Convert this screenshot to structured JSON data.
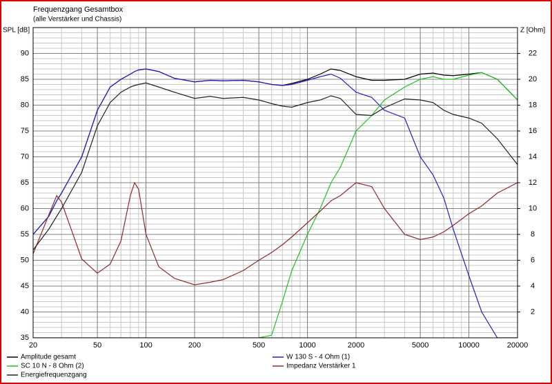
{
  "chart_data": {
    "type": "line",
    "title": "Frequenzgang Gesamtbox",
    "subtitle": "(alle Verstärker und Chassis)",
    "y_label": "SPL [dB]",
    "y2_label": "Z [Ohm]",
    "xscale": "log",
    "grid": true,
    "legend": "bottom",
    "x": [
      20,
      25,
      28,
      30,
      40,
      50,
      60,
      70,
      80,
      85,
      90,
      100,
      120,
      150,
      200,
      250,
      300,
      400,
      500,
      600,
      700,
      800,
      1000,
      1200,
      1400,
      1600,
      2000,
      2500,
      3000,
      4000,
      5000,
      6000,
      7000,
      8000,
      10000,
      12000,
      15000,
      20000
    ],
    "xlim": [
      20,
      20000
    ],
    "xticks": [
      20,
      50,
      100,
      200,
      500,
      1000,
      2000,
      5000,
      10000,
      20000
    ],
    "ylim": [
      35,
      95
    ],
    "yticks": [
      35,
      40,
      45,
      50,
      55,
      60,
      65,
      70,
      75,
      80,
      85,
      90
    ],
    "y2lim": [
      0,
      24
    ],
    "y2ticks": [
      2,
      4,
      6,
      8,
      10,
      12,
      14,
      16,
      18,
      20,
      22
    ],
    "series": [
      {
        "name": "Amplitude gesamt",
        "color": "#000000",
        "values": [
          55,
          58.5,
          61.5,
          63,
          70,
          79,
          83.5,
          85,
          86,
          86.5,
          86.8,
          87,
          86.5,
          85.2,
          84.5,
          84.8,
          84.7,
          84.8,
          84.5,
          84,
          83.8,
          84.2,
          85,
          86,
          87,
          86.7,
          85.5,
          84.8,
          84.8,
          85,
          86,
          86.2,
          85.8,
          85.7,
          86,
          86.3,
          85,
          81
        ]
      },
      {
        "name": "W 130 S - 4 Ohm (1)",
        "color": "#2020c0",
        "values": [
          55,
          58.5,
          61.5,
          63,
          70,
          79,
          83.5,
          85,
          86,
          86.5,
          86.8,
          87,
          86.5,
          85.2,
          84.5,
          84.8,
          84.7,
          84.8,
          84.5,
          84,
          83.8,
          84,
          84.8,
          85.5,
          86,
          85.2,
          82.5,
          81.5,
          79,
          77.5,
          70,
          66.5,
          62,
          56,
          47,
          40,
          35,
          35
        ]
      },
      {
        "name": "SC 10 N - 8 Ohm (2)",
        "color": "#20c020",
        "values": [
          35,
          35,
          35,
          35,
          35,
          35,
          35,
          35,
          35,
          35,
          35,
          35,
          35,
          35,
          35,
          35,
          35,
          35,
          35,
          35.5,
          42,
          48,
          55,
          60,
          65,
          68,
          75,
          78,
          81,
          83.5,
          85,
          85.5,
          85,
          85,
          85.8,
          86.3,
          85,
          81
        ]
      },
      {
        "name": "Impedanz Verstärker 1",
        "color": "#8b2a2a",
        "axis": "y2",
        "values": [
          6.5,
          9.5,
          11,
          10.5,
          6.1,
          5,
          5.7,
          7.5,
          11,
          12,
          11.5,
          8,
          5.5,
          4.6,
          4.1,
          4.3,
          4.5,
          5.2,
          6,
          6.6,
          7.2,
          7.8,
          8.9,
          9.8,
          10.6,
          11,
          12,
          11.7,
          10,
          8,
          7.6,
          7.8,
          8.2,
          8.7,
          9.6,
          10.2,
          11.2,
          12
        ]
      },
      {
        "name": "Energiefrequenzgang",
        "color": "#202020",
        "values": [
          52,
          56,
          58.5,
          60,
          67,
          76,
          80.5,
          82.5,
          83.5,
          83.8,
          84,
          84.3,
          83.5,
          82.5,
          81.3,
          81.7,
          81.3,
          81.5,
          81,
          80.3,
          79.8,
          79.6,
          80.5,
          81,
          81.8,
          81.3,
          78.2,
          78,
          79.5,
          81.2,
          81,
          80.5,
          79,
          78.2,
          77.5,
          76.5,
          73.5,
          68.5
        ]
      }
    ]
  }
}
